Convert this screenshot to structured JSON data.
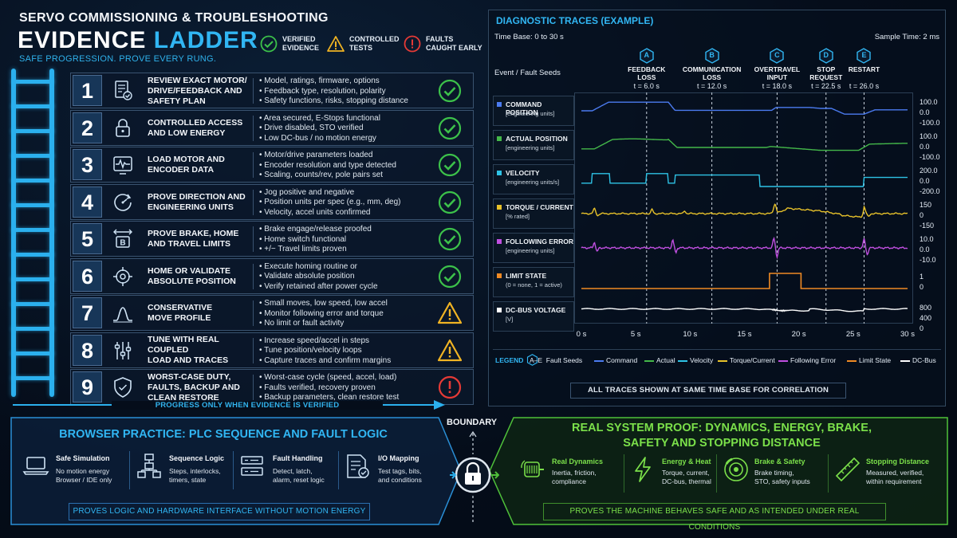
{
  "header": {
    "title": "SERVO COMMISSIONING & TROUBLESHOOTING",
    "big_word1": "EVIDENCE",
    "big_word2": "LADDER",
    "subtitle": "SAFE PROGRESSION. PROVE EVERY RUNG."
  },
  "legend_top": [
    {
      "label": "VERIFIED\nEVIDENCE",
      "icon": "check-circle-icon",
      "color": "#3cc14a"
    },
    {
      "label": "CONTROLLED\nTESTS",
      "icon": "warning-triangle-icon",
      "color": "#f0b323"
    },
    {
      "label": "FAULTS\nCAUGHT EARLY",
      "icon": "error-circle-icon",
      "color": "#e53a36"
    }
  ],
  "steps": [
    {
      "num": "1",
      "icon": "document-check-icon",
      "title": [
        "REVIEW EXACT MOTOR/",
        "DRIVE/FEEDBACK AND",
        "SAFETY PLAN"
      ],
      "bullets": [
        "Model, ratings, firmware, options",
        "Feedback type, resolution, polarity",
        "Safety functions, risks, stopping distance"
      ],
      "status": "check"
    },
    {
      "num": "2",
      "icon": "padlock-icon",
      "title": [
        "CONTROLLED ACCESS",
        "AND LOW ENERGY"
      ],
      "bullets": [
        "Area secured, E-Stops functional",
        "Drive disabled, STO verified",
        "Low DC-bus / no motion energy"
      ],
      "status": "check"
    },
    {
      "num": "3",
      "icon": "waveform-monitor-icon",
      "title": [
        "LOAD MOTOR AND",
        "ENCODER DATA"
      ],
      "bullets": [
        "Motor/drive parameters loaded",
        "Encoder resolution and type detected",
        "Scaling, counts/rev, pole pairs set"
      ],
      "status": "check"
    },
    {
      "num": "4",
      "icon": "direction-gauge-icon",
      "title": [
        "PROVE DIRECTION AND",
        "ENGINEERING UNITS"
      ],
      "bullets": [
        "Jog positive and negative",
        "Position units per spec (e.g., mm, deg)",
        "Velocity, accel units confirmed"
      ],
      "status": "check"
    },
    {
      "num": "5",
      "icon": "brake-travel-icon",
      "title": [
        "PROVE BRAKE, HOME",
        "AND TRAVEL LIMITS"
      ],
      "bullets": [
        "Brake engage/release proofed",
        "Home switch functional",
        "+/− Travel limits proven"
      ],
      "status": "check"
    },
    {
      "num": "6",
      "icon": "target-icon",
      "title": [
        "HOME OR VALIDATE",
        "ABSOLUTE POSITION"
      ],
      "bullets": [
        "Execute homing routine or",
        "Validate absolute position",
        "Verify retained after power cycle"
      ],
      "status": "check"
    },
    {
      "num": "7",
      "icon": "motion-profile-icon",
      "title": [
        "CONSERVATIVE",
        "MOVE PROFILE"
      ],
      "bullets": [
        "Small moves, low speed, low accel",
        "Monitor following error and torque",
        "No limit or fault activity"
      ],
      "status": "warn"
    },
    {
      "num": "8",
      "icon": "tuning-sliders-icon",
      "title": [
        "TUNE WITH REAL COUPLED",
        "LOAD AND TRACES"
      ],
      "bullets": [
        "Increase speed/accel in steps",
        "Tune position/velocity loops",
        "Capture traces and confirm margins"
      ],
      "status": "warn"
    },
    {
      "num": "9",
      "icon": "shield-icon",
      "title": [
        "WORST-CASE DUTY,",
        "FAULTS, BACKUP AND",
        "CLEAN RESTORE"
      ],
      "bullets": [
        "Worst-case cycle (speed, accel, load)",
        "Faults verified, recovery proven",
        "Backup parameters, clean restore test"
      ],
      "status": "error"
    }
  ],
  "progress_label": "PROGRESS ONLY WHEN EVIDENCE IS VERIFIED",
  "diagnostic": {
    "title": "DIAGNOSTIC TRACES (EXAMPLE)",
    "time_base": "Time Base: 0 to 30 s",
    "sample_time": "Sample Time: 2 ms",
    "seeds_header": "Event / Fault Seeds",
    "seeds": [
      {
        "letter": "A",
        "name": [
          "FEEDBACK",
          "LOSS"
        ],
        "time": "t = 6.0 s",
        "t": 6.0
      },
      {
        "letter": "B",
        "name": [
          "COMMUNICATION",
          "LOSS"
        ],
        "time": "t = 12.0 s",
        "t": 12.0
      },
      {
        "letter": "C",
        "name": [
          "OVERTRAVEL",
          "INPUT"
        ],
        "time": "t = 18.0 s",
        "t": 18.0
      },
      {
        "letter": "D",
        "name": [
          "STOP",
          "REQUEST"
        ],
        "time": "t = 22.5 s",
        "t": 22.5
      },
      {
        "letter": "E",
        "name": [
          "RESTART"
        ],
        "time": "t = 26.0 s",
        "t": 26.0
      }
    ],
    "signals": [
      {
        "name": "COMMAND POSITION",
        "unit": "[engineering units]",
        "color": "#4b7bf0",
        "scale": [
          "100.0",
          "0.0",
          "-100.0"
        ]
      },
      {
        "name": "ACTUAL POSITION",
        "unit": "[engineering units]",
        "color": "#44b84a",
        "scale": [
          "100.0",
          "0.0",
          "-100.0"
        ]
      },
      {
        "name": "VELOCITY",
        "unit": "[engineering units/s]",
        "color": "#2ec3e6",
        "scale": [
          "200.0",
          "0.0",
          "-200.0"
        ]
      },
      {
        "name": "TORQUE / CURRENT",
        "unit": "[% rated]",
        "color": "#e8c22a",
        "scale": [
          "150",
          "0",
          "-150"
        ]
      },
      {
        "name": "FOLLOWING ERROR",
        "unit": "[engineering units]",
        "color": "#c04fe0",
        "scale": [
          "10.0",
          "0.0",
          "-10.0"
        ]
      },
      {
        "name": "LIMIT STATE",
        "unit": "(0 = none, 1 = active)",
        "color": "#f08a24",
        "scale": [
          "1",
          "0"
        ]
      },
      {
        "name": "DC-BUS VOLTAGE",
        "unit": "[V]",
        "color": "#ffffff",
        "scale": [
          "800",
          "400",
          "0"
        ]
      }
    ],
    "x_ticks": [
      "0 s",
      "5 s",
      "10 s",
      "15 s",
      "20 s",
      "25 s",
      "30 s"
    ],
    "legend_label": "LEGEND",
    "legend_seed": "A–E  Fault Seeds",
    "legend_items": [
      {
        "label": "Command",
        "color": "#4b7bf0"
      },
      {
        "label": "Actual",
        "color": "#44b84a"
      },
      {
        "label": "Velocity",
        "color": "#2ec3e6"
      },
      {
        "label": "Torque/Current",
        "color": "#e8c22a"
      },
      {
        "label": "Following Error",
        "color": "#c04fe0"
      },
      {
        "label": "Limit State",
        "color": "#f08a24"
      },
      {
        "label": "DC-Bus",
        "color": "#ffffff"
      }
    ],
    "note": "ALL TRACES SHOWN AT SAME TIME BASE FOR CORRELATION"
  },
  "boundary_label": "BOUNDARY",
  "browser": {
    "title": "BROWSER PRACTICE: PLC SEQUENCE AND FAULT LOGIC",
    "items": [
      {
        "icon": "laptop-icon",
        "title": "Safe Simulation",
        "lines": [
          "No motion energy",
          "Browser / IDE only"
        ]
      },
      {
        "icon": "flowchart-icon",
        "title": "Sequence Logic",
        "lines": [
          "Steps, interlocks,",
          "timers, state"
        ]
      },
      {
        "icon": "fault-list-icon",
        "title": "Fault Handling",
        "lines": [
          "Detect, latch,",
          "alarm, reset logic"
        ]
      },
      {
        "icon": "io-mapping-icon",
        "title": "I/O Mapping",
        "lines": [
          "Test tags, bits,",
          "and conditions"
        ]
      }
    ],
    "footer": "PROVES LOGIC AND HARDWARE INTERFACE WITHOUT MOTION ENERGY"
  },
  "real": {
    "title": [
      "REAL SYSTEM PROOF: DYNAMICS, ENERGY, BRAKE,",
      "SAFETY AND STOPPING DISTANCE"
    ],
    "items": [
      {
        "icon": "motor-icon",
        "title": "Real Dynamics",
        "lines": [
          "Inertia, friction,",
          "compliance"
        ]
      },
      {
        "icon": "lightning-icon",
        "title": "Energy & Heat",
        "lines": [
          "Torque, current,",
          "DC-bus, thermal"
        ]
      },
      {
        "icon": "brake-disc-icon",
        "title": "Brake & Safety",
        "lines": [
          "Brake timing,",
          "STO, safety inputs"
        ]
      },
      {
        "icon": "ruler-icon",
        "title": "Stopping Distance",
        "lines": [
          "Measured, verified,",
          "within requirement"
        ]
      }
    ],
    "footer": "PROVES THE MACHINE BEHAVES SAFE AND AS INTENDED UNDER REAL CONDITIONS"
  }
}
